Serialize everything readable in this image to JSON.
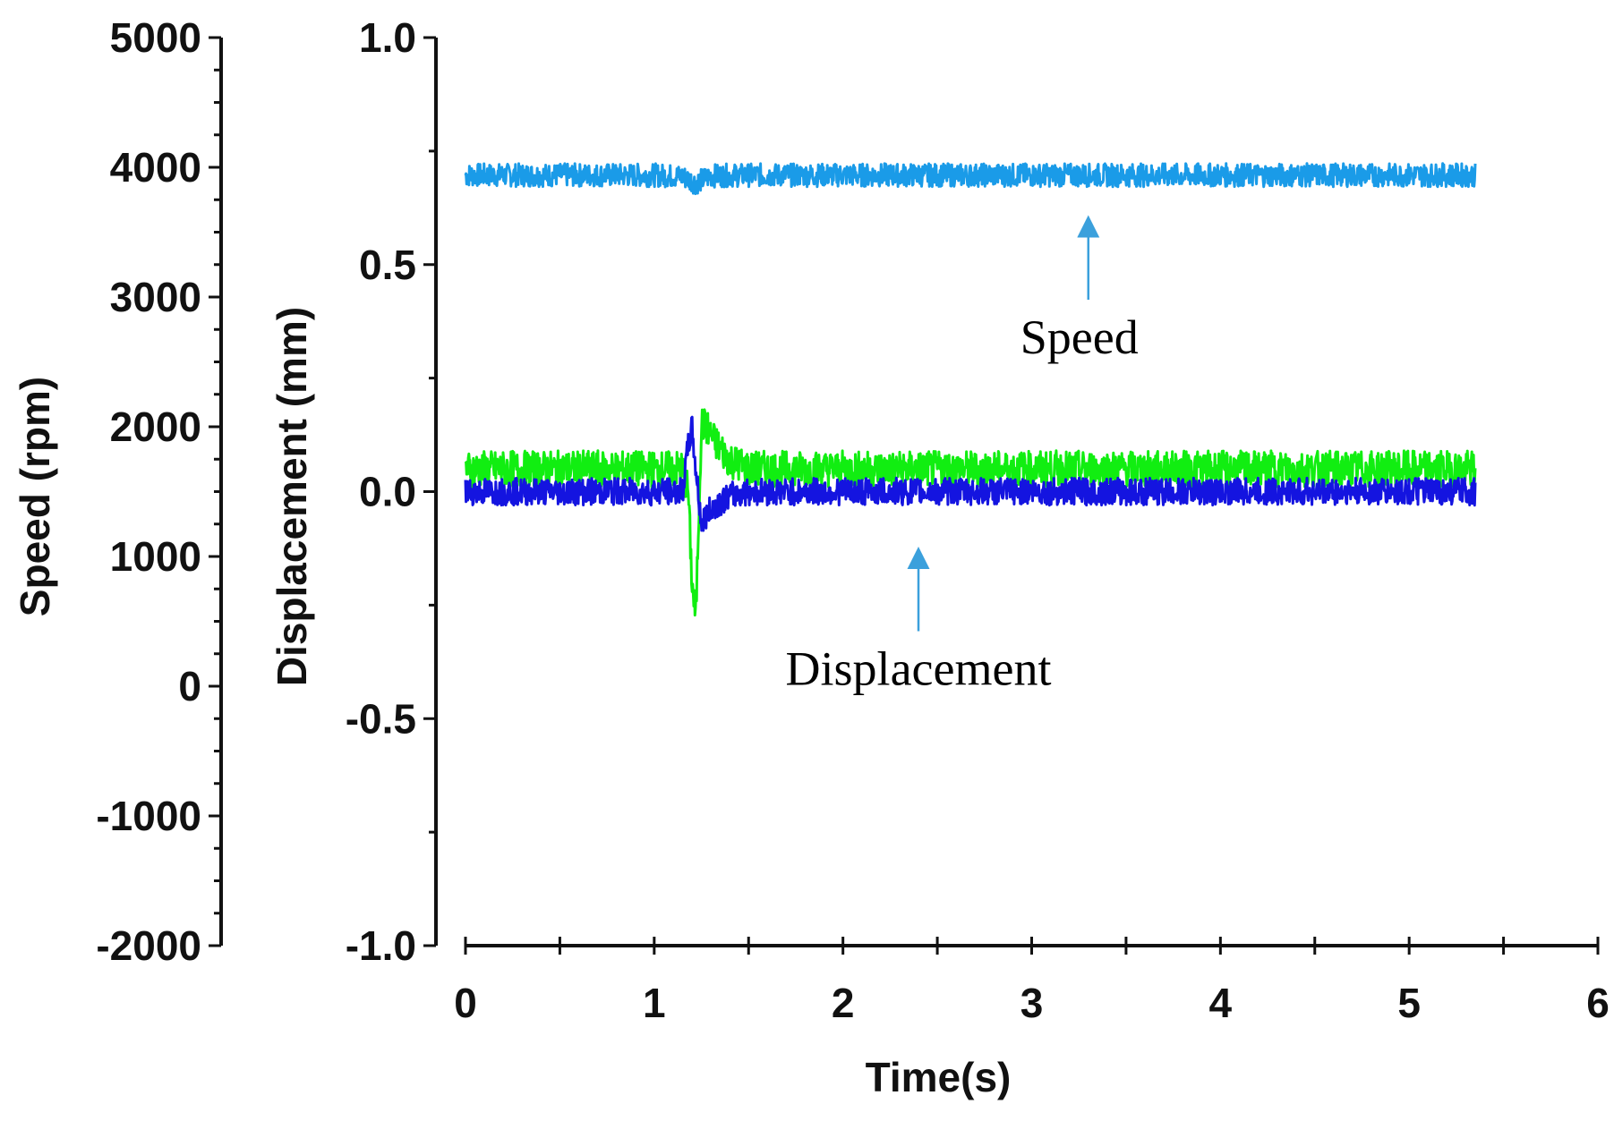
{
  "chart_data": {
    "type": "line",
    "title": "",
    "xlabel": "Time(s)",
    "xlim": [
      0,
      6
    ],
    "xticks": [
      "0",
      "1",
      "2",
      "3",
      "4",
      "5",
      "6"
    ],
    "y_left": {
      "label": "Speed (rpm)",
      "ylim": [
        -2000,
        5000
      ],
      "ticks": [
        "5000",
        "4000",
        "3000",
        "2000",
        "1000",
        "0",
        "-1000",
        "-2000"
      ]
    },
    "y_right": {
      "label": "Displacement (mm)",
      "ylim": [
        -1.0,
        1.0
      ],
      "ticks": [
        "1.0",
        "0.5",
        "0.0",
        "-0.5",
        "-1.0"
      ]
    },
    "series": [
      {
        "name": "Speed",
        "axis": "speed",
        "color": "#1a9be8",
        "x": [
          0,
          0.5,
          1.0,
          1.15,
          1.22,
          1.3,
          1.5,
          2.0,
          3.0,
          4.0,
          5.0,
          5.35
        ],
        "y": [
          3940,
          3940,
          3940,
          3930,
          3880,
          3935,
          3940,
          3940,
          3940,
          3940,
          3940,
          3940
        ],
        "noise": 90
      },
      {
        "name": "Displacement (green)",
        "axis": "displacement",
        "color": "#11ee11",
        "x": [
          0,
          0.5,
          1.0,
          1.15,
          1.18,
          1.2,
          1.22,
          1.25,
          1.28,
          1.32,
          1.4,
          1.5,
          2.0,
          3.0,
          4.0,
          5.0,
          5.35
        ],
        "y": [
          0.05,
          0.05,
          0.05,
          0.05,
          0.0,
          -0.2,
          -0.28,
          0.15,
          0.14,
          0.11,
          0.07,
          0.05,
          0.05,
          0.05,
          0.05,
          0.05,
          0.05
        ],
        "noise": 0.04
      },
      {
        "name": "Displacement (blue)",
        "axis": "displacement",
        "color": "#1414e0",
        "x": [
          0,
          0.5,
          1.0,
          1.15,
          1.18,
          1.2,
          1.22,
          1.25,
          1.28,
          1.32,
          1.4,
          1.5,
          2.0,
          3.0,
          4.0,
          5.0,
          5.35
        ],
        "y": [
          0.0,
          0.0,
          0.0,
          0.0,
          0.1,
          0.14,
          0.05,
          -0.07,
          -0.05,
          -0.03,
          -0.01,
          0.0,
          0.0,
          0.0,
          0.0,
          0.0,
          0.0
        ],
        "noise": 0.03
      }
    ],
    "annotations": [
      {
        "text": "Speed",
        "arrow_to": {
          "x": 3.3,
          "y_speed": 3600
        }
      },
      {
        "text": "Displacement",
        "arrow_to": {
          "x": 2.4,
          "y_disp": -0.13
        }
      }
    ]
  }
}
